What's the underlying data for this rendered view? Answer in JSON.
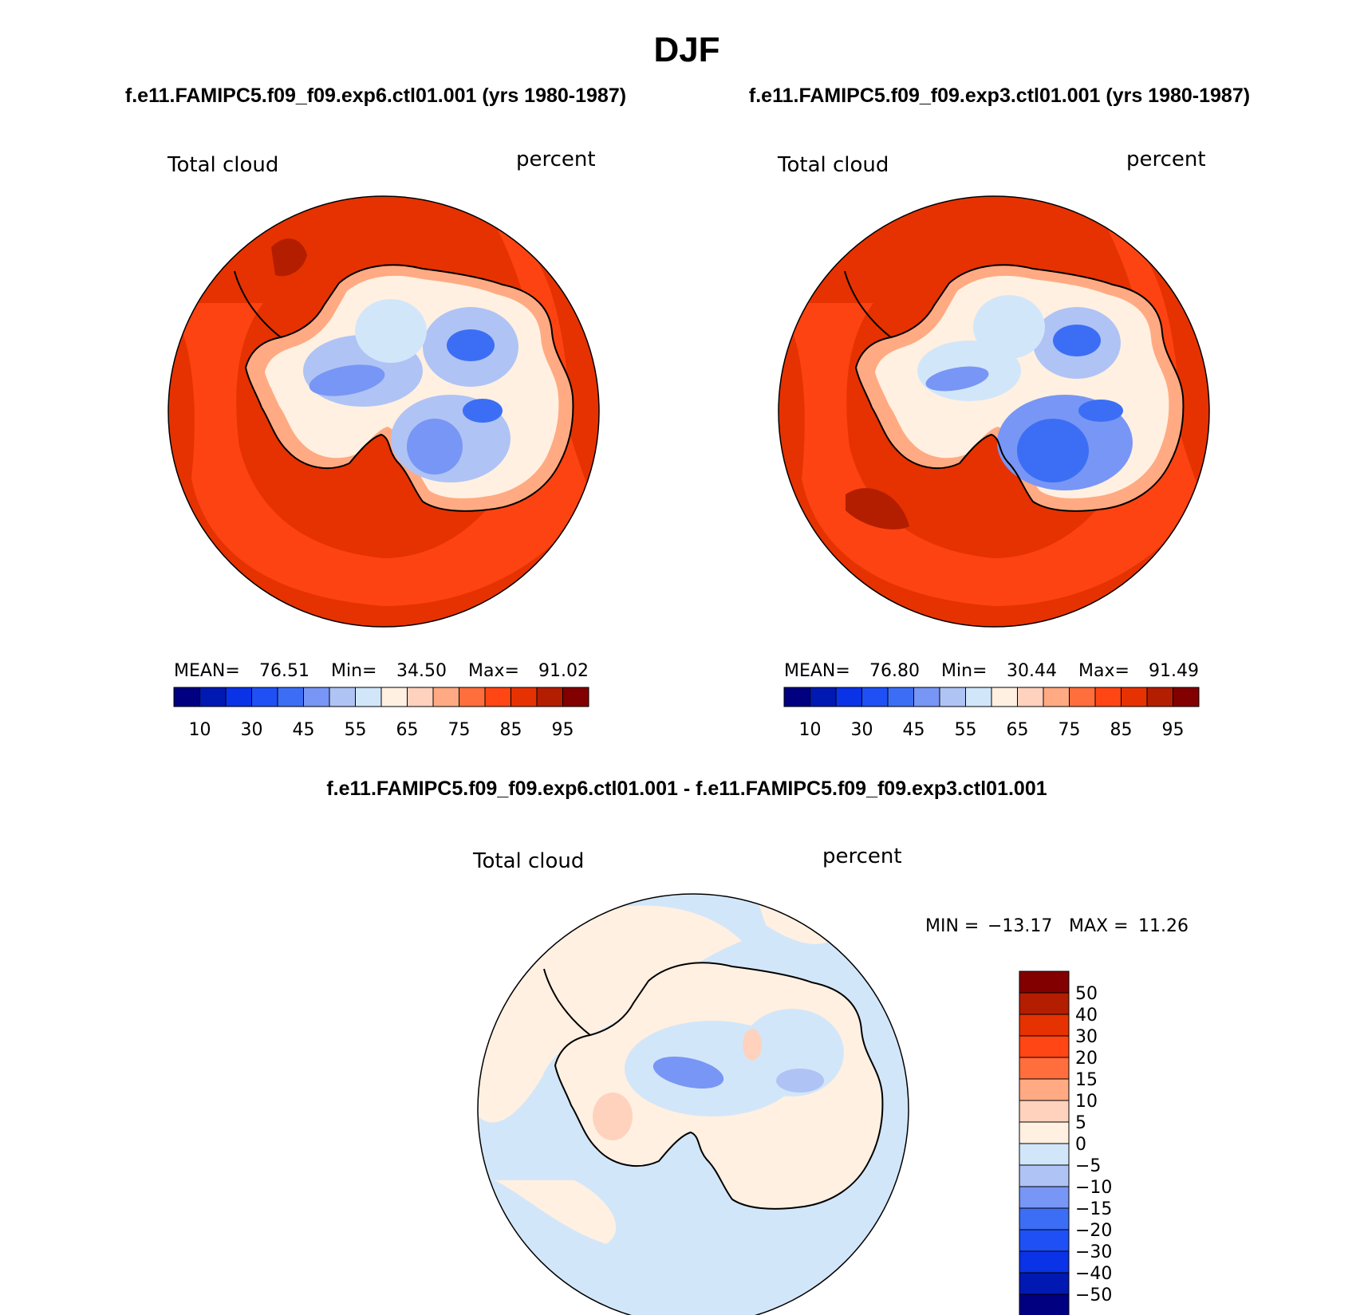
{
  "figure": {
    "season": "DJF",
    "case1_title": "f.e11.FAMIPC5.f09_f09.exp6.ctl01.001 (yrs 1980-1987)",
    "case2_title": "f.e11.FAMIPC5.f09_f09.exp3.ctl01.001 (yrs 1980-1987)",
    "diff_title": "f.e11.FAMIPC5.f09_f09.exp6.ctl01.001 - f.e11.FAMIPC5.f09_f09.exp3.ctl01.001"
  },
  "panels": [
    {
      "variable": "Total cloud",
      "units": "percent",
      "stats": {
        "mean_label": "MEAN=",
        "mean": "76.51",
        "min_label": "Min=",
        "min": "34.50",
        "max_label": "Max=",
        "max": "91.02"
      }
    },
    {
      "variable": "Total cloud",
      "units": "percent",
      "stats": {
        "mean_label": "MEAN=",
        "mean": "76.80",
        "min_label": "Min=",
        "min": "30.44",
        "max_label": "Max=",
        "max": "91.49"
      }
    },
    {
      "variable": "Total cloud",
      "units": "percent",
      "stats": {
        "min_label": "MIN =",
        "min": "−13.17",
        "max_label": "MAX =",
        "max": "11.26"
      }
    }
  ],
  "colorbar_main": {
    "colors": [
      "#000080",
      "#0019b3",
      "#0a32e6",
      "#1e50f5",
      "#3c6ef5",
      "#7896f5",
      "#afc3f5",
      "#d2e6fa",
      "#fff0e1",
      "#ffd2be",
      "#ffaa82",
      "#ff6e3c",
      "#ff4614",
      "#e63200",
      "#b41e00",
      "#820000"
    ],
    "labels": [
      "10",
      "30",
      "45",
      "55",
      "65",
      "75",
      "85",
      "95"
    ]
  },
  "colorbar_diff": {
    "colors_top_to_bottom": [
      "#820000",
      "#b41e00",
      "#e63200",
      "#ff4614",
      "#ff6e3c",
      "#ffaa82",
      "#ffd2be",
      "#fff0e1",
      "#d2e6fa",
      "#afc3f5",
      "#7896f5",
      "#3c6ef5",
      "#1e50f5",
      "#0a32e6",
      "#0019b3",
      "#000080"
    ],
    "labels_top_to_bottom": [
      "50",
      "40",
      "30",
      "20",
      "15",
      "10",
      "5",
      "0",
      "−5",
      "−10",
      "−15",
      "−20",
      "−30",
      "−40",
      "−50"
    ]
  },
  "chart_data": {
    "type": "heatmap",
    "title": "DJF",
    "projection": "South polar stereographic",
    "variable": "Total cloud",
    "units": "percent",
    "panels": [
      {
        "case": "f.e11.FAMIPC5.f09_f09.exp6.ctl01.001 (yrs 1980-1987)",
        "mean": 76.51,
        "min": 34.5,
        "max": 91.02,
        "contour_levels": [
          10,
          20,
          30,
          40,
          45,
          50,
          55,
          60,
          65,
          70,
          75,
          80,
          85,
          90,
          95
        ]
      },
      {
        "case": "f.e11.FAMIPC5.f09_f09.exp3.ctl01.001 (yrs 1980-1987)",
        "mean": 76.8,
        "min": 30.44,
        "max": 91.49,
        "contour_levels": [
          10,
          20,
          30,
          40,
          45,
          50,
          55,
          60,
          65,
          70,
          75,
          80,
          85,
          90,
          95
        ]
      },
      {
        "case": "f.e11.FAMIPC5.f09_f09.exp6.ctl01.001 - f.e11.FAMIPC5.f09_f09.exp3.ctl01.001",
        "min": -13.17,
        "max": 11.26,
        "contour_levels": [
          -50,
          -40,
          -30,
          -20,
          -15,
          -10,
          -5,
          0,
          5,
          10,
          15,
          20,
          30,
          40,
          50
        ]
      }
    ]
  }
}
